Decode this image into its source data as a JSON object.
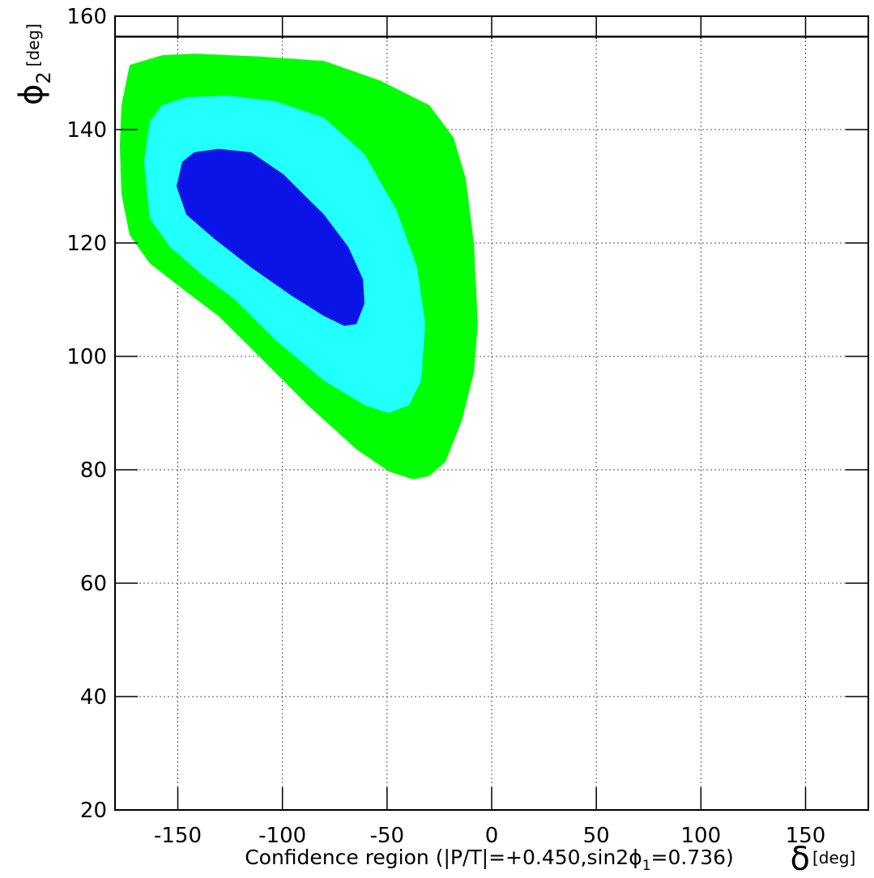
{
  "chart_data": {
    "type": "contour",
    "x_label": [
      "Confidence region (|P/T|=+0.450,sin2ϕ",
      "1",
      "=0.736)"
    ],
    "x_symbol": "δ",
    "x_unit": "[deg]",
    "y_symbol": "ϕ",
    "y_symbol_sub": "2",
    "y_unit": "[deg]",
    "xlim": [
      -180,
      180
    ],
    "ylim": [
      20,
      160
    ],
    "xticks": [
      -150,
      -100,
      -50,
      0,
      50,
      100,
      150
    ],
    "yticks": [
      20,
      40,
      60,
      80,
      100,
      120,
      140,
      160
    ],
    "grid": true,
    "hline": 156.4,
    "series": [
      {
        "color": "#00ff00",
        "x": [
          -173.0,
          -157.5,
          -142.1,
          -111.1,
          -80.1,
          -53.0,
          -29.8,
          -18.2,
          -12.4,
          -8.5,
          -6.6,
          -8.5,
          -14.3,
          -22.1,
          -29.8,
          -37.5,
          -49.1,
          -64.6,
          -87.9,
          -111.1,
          -130.5,
          -145.9,
          -163.4,
          -173.0,
          -176.9,
          -177.7,
          -176.9
        ],
        "y": [
          151.4,
          153.1,
          153.4,
          152.9,
          152.1,
          148.6,
          144.3,
          138.6,
          131.4,
          120.0,
          105.7,
          97.1,
          88.6,
          81.4,
          78.9,
          78.3,
          79.7,
          83.6,
          91.4,
          100.0,
          107.1,
          111.4,
          116.4,
          121.4,
          128.6,
          137.1,
          144.3
        ]
      },
      {
        "color": "#22ffff",
        "x": [
          -163.4,
          -157.5,
          -145.9,
          -126.6,
          -103.4,
          -80.1,
          -60.8,
          -45.3,
          -35.6,
          -31.7,
          -33.7,
          -39.5,
          -49.2,
          -60.8,
          -80.1,
          -103.4,
          -122.7,
          -138.2,
          -153.7,
          -163.4,
          -166.1
        ],
        "y": [
          141.4,
          144.3,
          145.7,
          146.0,
          145.0,
          142.1,
          135.7,
          125.7,
          115.7,
          105.7,
          95.7,
          91.4,
          90.0,
          91.4,
          95.7,
          102.9,
          110.0,
          114.3,
          119.3,
          124.3,
          134.3
        ]
      },
      {
        "color": "#0a14e6",
        "x": [
          -147.9,
          -142.1,
          -130.5,
          -115.0,
          -99.5,
          -80.1,
          -68.5,
          -61.5,
          -60.8,
          -64.6,
          -70.5,
          -80.1,
          -95.6,
          -115.0,
          -132.4,
          -145.9,
          -150.6
        ],
        "y": [
          134.3,
          136.0,
          136.6,
          136.0,
          132.1,
          125.0,
          119.3,
          113.6,
          109.3,
          105.7,
          105.4,
          107.1,
          110.7,
          115.7,
          120.7,
          125.0,
          130.0
        ]
      }
    ]
  }
}
